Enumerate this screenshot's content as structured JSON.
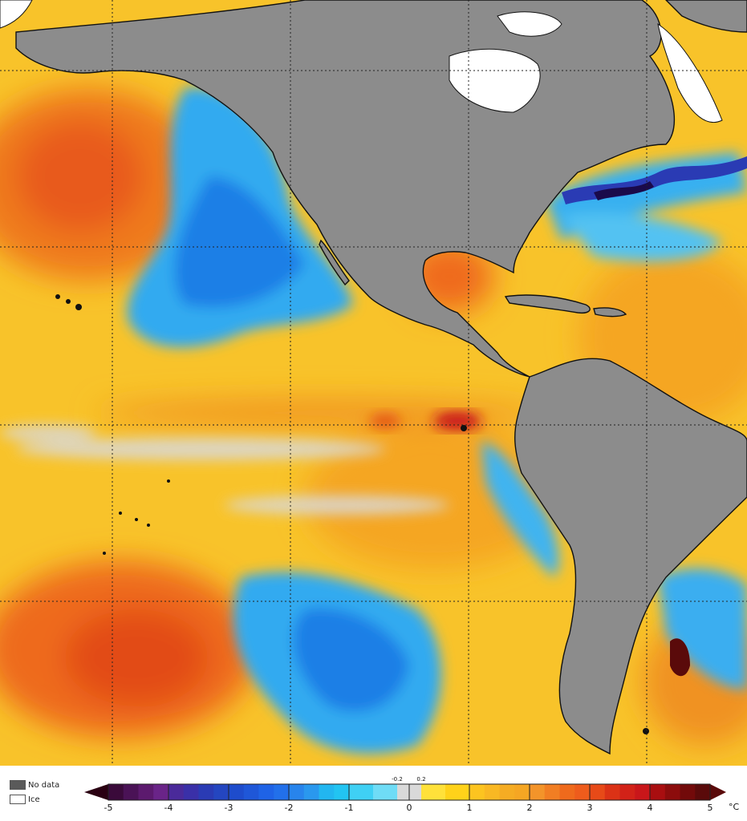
{
  "legend": {
    "no_data_label": "No data",
    "ice_label": "Ice",
    "no_data_color": "#5a5a5a",
    "ice_color": "#ffffff"
  },
  "colorbar": {
    "unit": "°C",
    "major_ticks": [
      "-5",
      "-4",
      "-3",
      "-2",
      "-1",
      "0",
      "1",
      "2",
      "3",
      "4",
      "5"
    ],
    "minor_ticks": [
      "-0.2",
      "0.2"
    ],
    "range": [
      -5,
      5
    ],
    "neutral_band": [
      -0.2,
      0.2
    ],
    "colors": {
      "neg5": "#2a0012",
      "neg4": "#5c1a6e",
      "neg3": "#2a3bb4",
      "neg2": "#1f63e6",
      "neg1": "#22b6f0",
      "neutral": "#d9d9d9",
      "pos1": "#ffd21a",
      "pos2": "#f5a623",
      "pos3": "#ee5c1c",
      "pos4": "#c9161a",
      "pos5": "#5a0a0a"
    }
  },
  "map": {
    "land_color": "#8c8c8c",
    "ice_color": "#ffffff",
    "ocean_base_color": "#f8c32a"
  }
}
